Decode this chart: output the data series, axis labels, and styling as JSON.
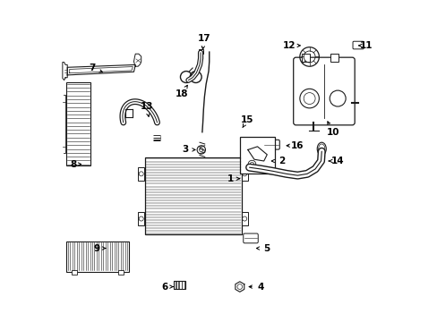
{
  "bg_color": "#ffffff",
  "line_color": "#1a1a1a",
  "label_fontsize": 7.5,
  "parts_coords": {
    "1": [
      0.535,
      0.445,
      0.575,
      0.445
    ],
    "2": [
      0.695,
      0.5,
      0.645,
      0.5
    ],
    "3": [
      0.395,
      0.535,
      0.445,
      0.535
    ],
    "4": [
      0.63,
      0.108,
      0.575,
      0.108
    ],
    "5": [
      0.648,
      0.228,
      0.598,
      0.228
    ],
    "6": [
      0.33,
      0.108,
      0.375,
      0.108
    ],
    "7": [
      0.105,
      0.79,
      0.155,
      0.77
    ],
    "8": [
      0.047,
      0.49,
      0.082,
      0.49
    ],
    "9": [
      0.12,
      0.228,
      0.165,
      0.228
    ],
    "10": [
      0.855,
      0.59,
      0.83,
      0.64
    ],
    "11": [
      0.958,
      0.86,
      0.925,
      0.86
    ],
    "12": [
      0.72,
      0.86,
      0.772,
      0.86
    ],
    "13": [
      0.275,
      0.67,
      0.285,
      0.62
    ],
    "14": [
      0.87,
      0.5,
      0.825,
      0.5
    ],
    "15": [
      0.588,
      0.628,
      0.565,
      0.59
    ],
    "16": [
      0.745,
      0.548,
      0.692,
      0.548
    ],
    "17": [
      0.453,
      0.882,
      0.448,
      0.83
    ],
    "18": [
      0.385,
      0.71,
      0.412,
      0.752
    ]
  }
}
